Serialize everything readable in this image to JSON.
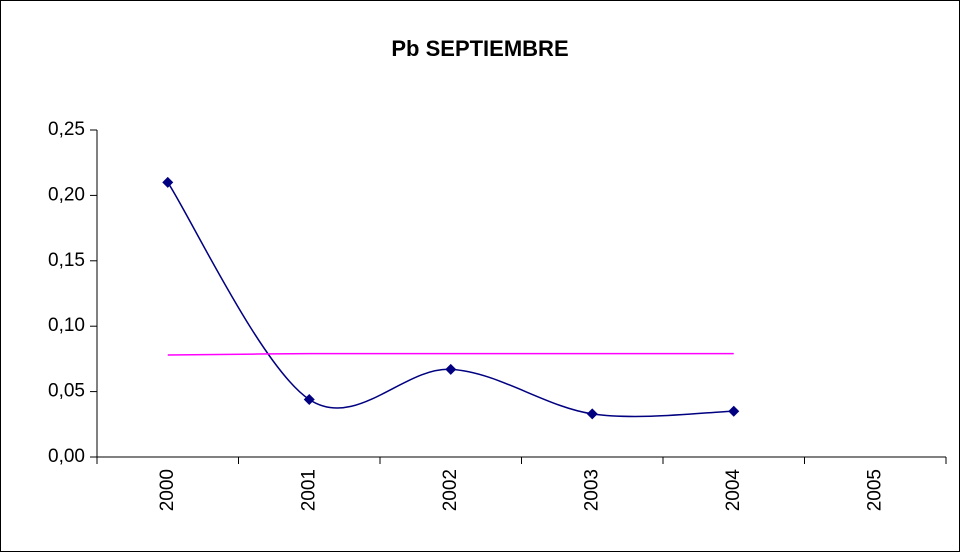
{
  "chart_data": {
    "type": "line",
    "title": "Pb SEPTIEMBRE",
    "categories": [
      "2000",
      "2001",
      "2002",
      "2003",
      "2004",
      "2005"
    ],
    "series": [
      {
        "color": "#000080",
        "marker": "diamond",
        "values": [
          0.21,
          0.044,
          0.067,
          0.033,
          0.035,
          null
        ]
      },
      {
        "color": "#ff00ff",
        "values": [
          0.078,
          0.079,
          0.079,
          0.079,
          0.079,
          null
        ]
      }
    ],
    "smooth": true,
    "ylim": [
      0,
      0.25
    ],
    "yticks": [
      {
        "value": 0,
        "label": "0,00"
      },
      {
        "value": 0.05,
        "label": "0,05"
      },
      {
        "value": 0.1,
        "label": "0,10"
      },
      {
        "value": 0.15,
        "label": "0,15"
      },
      {
        "value": 0.2,
        "label": "0,20"
      },
      {
        "value": 0.25,
        "label": "0,25"
      }
    ],
    "grid": false
  }
}
